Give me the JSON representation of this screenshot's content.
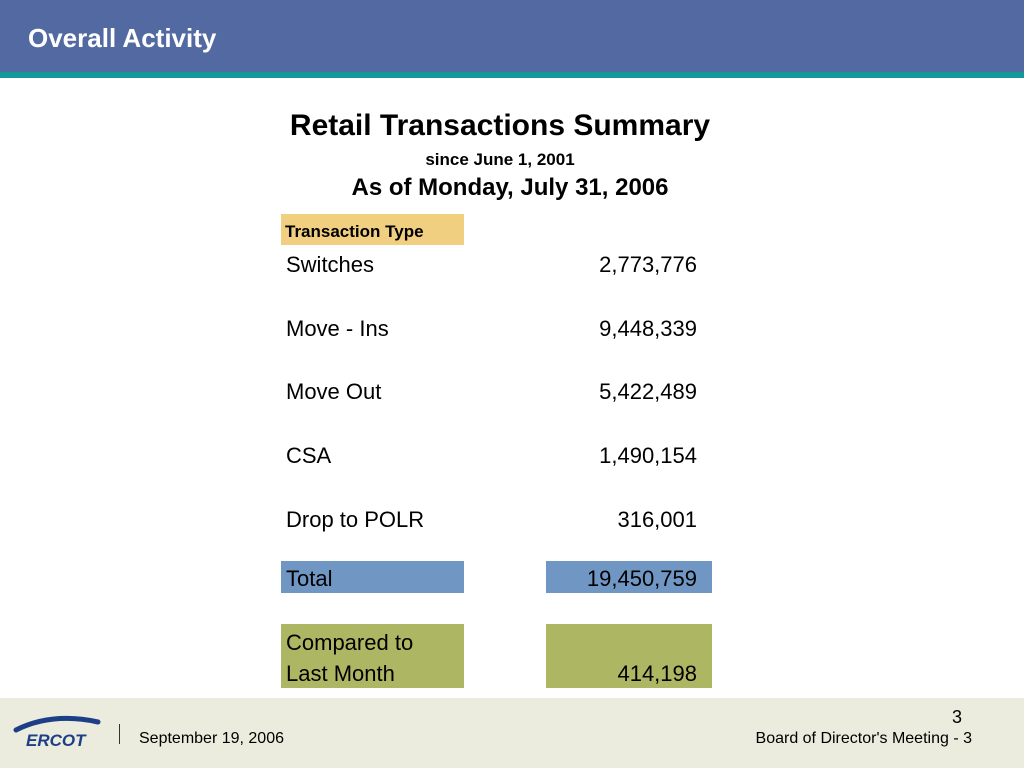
{
  "header": {
    "title": "Overall Activity"
  },
  "report": {
    "title": "Retail Transactions Summary",
    "since": "since June 1, 2001",
    "as_of": "As of Monday, July 31, 2006"
  },
  "table": {
    "column_header": "Transaction Type",
    "rows": [
      {
        "label": "Switches",
        "value": "2,773,776"
      },
      {
        "label": "Move - Ins",
        "value": "9,448,339"
      },
      {
        "label": "Move Out",
        "value": "5,422,489"
      },
      {
        "label": "CSA",
        "value": "1,490,154"
      },
      {
        "label": "Drop to POLR",
        "value": "316,001"
      }
    ],
    "total": {
      "label": "Total",
      "value": "19,450,759"
    },
    "compared": {
      "label_line1": "Compared to",
      "label_line2": "Last Month",
      "value": "414,198"
    }
  },
  "footer": {
    "logo_text": "ERCOT",
    "date": "September 19, 2006",
    "meeting": "Board of Director's Meeting - 3",
    "page_number": "3"
  },
  "colors": {
    "header": "#5369a1",
    "stripe": "#12999a",
    "column_header": "#f0cf80",
    "total": "#7096c4",
    "compared": "#adb763",
    "footer": "#ebebde"
  }
}
